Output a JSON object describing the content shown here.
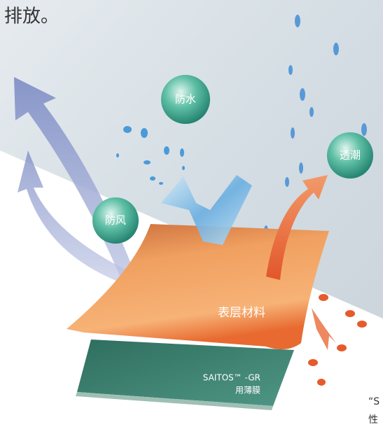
{
  "header": {
    "text": "排放。"
  },
  "labels": {
    "waterproof": "防水",
    "breathable": "透潮",
    "windproof": "防风",
    "outer_layer": "表层材料",
    "membrane": [
      "SAITOS™ -GR",
      "用薄膜"
    ]
  },
  "footer": {
    "quote": "“S",
    "line2": "性"
  }
}
